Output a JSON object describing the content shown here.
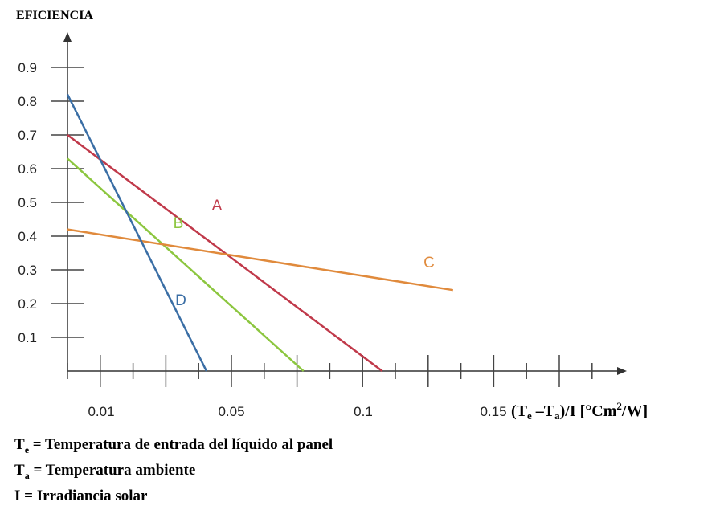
{
  "chart_data": {
    "type": "line",
    "ylabel": "EFICIENCIA",
    "xlabel": {
      "parts": [
        "(T",
        "e",
        " –T",
        "a",
        ")/I [°Cm",
        "2",
        "/W]"
      ]
    },
    "x_ticks": [
      {
        "value": 0.01,
        "label": "0.01"
      },
      {
        "value": 0.05,
        "label": "0.05"
      },
      {
        "value": 0.1,
        "label": "0.1"
      },
      {
        "value": 0.15,
        "label": "0.15"
      }
    ],
    "y_ticks": [
      {
        "value": 0.1,
        "label": "0.1"
      },
      {
        "value": 0.2,
        "label": "0.2"
      },
      {
        "value": 0.3,
        "label": "0.3"
      },
      {
        "value": 0.4,
        "label": "0.4"
      },
      {
        "value": 0.5,
        "label": "0.5"
      },
      {
        "value": 0.6,
        "label": "0.6"
      },
      {
        "value": 0.7,
        "label": "0.7"
      },
      {
        "value": 0.8,
        "label": "0.8"
      },
      {
        "value": 0.9,
        "label": "0.9"
      }
    ],
    "series": [
      {
        "name": "A",
        "color": "#c0394a",
        "points": [
          [
            0.0,
            0.7
          ],
          [
            0.12,
            0.0
          ]
        ]
      },
      {
        "name": "B",
        "color": "#8cc63f",
        "points": [
          [
            0.0,
            0.63
          ],
          [
            0.09,
            0.0
          ]
        ]
      },
      {
        "name": "C",
        "color": "#e08a3c",
        "points": [
          [
            0.0,
            0.42
          ],
          [
            0.147,
            0.24
          ]
        ]
      },
      {
        "name": "D",
        "color": "#3a6ea5",
        "points": [
          [
            0.0,
            0.82
          ],
          [
            0.053,
            0.0
          ]
        ]
      }
    ]
  },
  "legend": [
    {
      "sym": "T",
      "sub": "e",
      "text": " = Temperatura de entrada del líquido al panel"
    },
    {
      "sym": "T",
      "sub": "a",
      "text": " = Temperatura ambiente"
    },
    {
      "sym": "I",
      "sub": "",
      "text": " = Irradiancia solar"
    }
  ]
}
